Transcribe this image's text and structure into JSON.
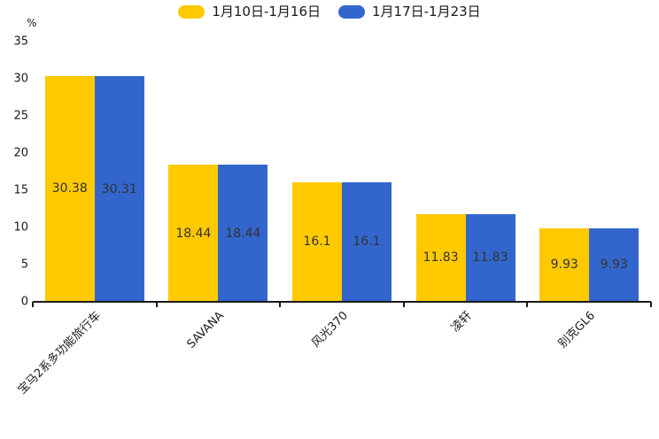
{
  "chart_data": {
    "type": "bar",
    "title": "",
    "ylabel": "%",
    "categories": [
      "宝马2系多功能旅行车",
      "SAVANA",
      "风光370",
      "凌轩",
      "别克GL6"
    ],
    "series": [
      {
        "name": "1月10日-1月16日",
        "color": "#FFC900",
        "values": [
          30.38,
          18.44,
          16.1,
          11.83,
          9.93
        ]
      },
      {
        "name": "1月17日-1月23日",
        "color": "#3366CC",
        "values": [
          30.31,
          18.44,
          16.1,
          11.83,
          9.93
        ]
      }
    ],
    "ylim": [
      0,
      35
    ],
    "yticks": [
      0,
      5,
      10,
      15,
      20,
      25,
      30,
      35
    ],
    "legend_position": "top",
    "grid": false,
    "xlabel_rotation_deg": 45,
    "bar_label_position": "inside-center",
    "bar_label_color": "#333333",
    "axis_color": "#1a1a1a",
    "background_color": "#ffffff"
  }
}
